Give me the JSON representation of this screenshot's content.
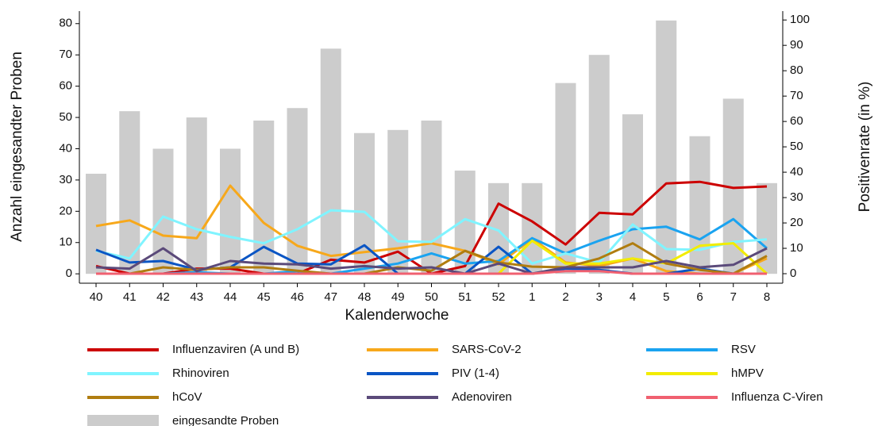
{
  "chart_data": {
    "type": "bar",
    "categories": [
      "40",
      "41",
      "42",
      "43",
      "44",
      "45",
      "46",
      "47",
      "48",
      "49",
      "50",
      "51",
      "52",
      "1",
      "2",
      "3",
      "4",
      "5",
      "6",
      "7",
      "8"
    ],
    "x_label": "Kalenderwoche",
    "y_label": "Anzahl eingesandter Proben",
    "y2_label": "Positivenrate (in %)",
    "ylim": [
      -3,
      84
    ],
    "yticks": [
      0,
      10,
      20,
      30,
      40,
      50,
      60,
      70,
      80
    ],
    "y2lim": [
      -3.75,
      103.5
    ],
    "y2ticks": [
      0,
      10,
      20,
      30,
      40,
      50,
      60,
      70,
      80,
      90,
      100
    ],
    "series": [
      {
        "name": "Influenzaviren (A und B)",
        "type": "line",
        "axis": "y2",
        "color": "#cc0000",
        "values": [
          3,
          0,
          0,
          2,
          2,
          0,
          0,
          5.5,
          4.4,
          8.7,
          0,
          3,
          27.6,
          20.6,
          11.5,
          24,
          23.4,
          35.6,
          36.2,
          33.8,
          34.4
        ]
      },
      {
        "name": "SARS-CoV-2",
        "type": "line",
        "axis": "y2",
        "color": "#f7a81b",
        "values": [
          18.8,
          21,
          15,
          14,
          34.7,
          20,
          11,
          7,
          8.5,
          10,
          12,
          9,
          3.7,
          13.8,
          4.4,
          3,
          6,
          1,
          0,
          0,
          6
        ]
      },
      {
        "name": "RSV",
        "type": "line",
        "axis": "y2",
        "color": "#1aa3f0",
        "values": [
          0,
          0,
          0,
          0.6,
          0,
          0,
          1,
          0,
          2,
          4,
          8,
          4,
          5,
          14,
          8,
          13,
          17.5,
          18.5,
          13.5,
          21.5,
          10
        ]
      },
      {
        "name": "Rhinoviren",
        "type": "line",
        "axis": "y2",
        "color": "#80f4ff",
        "values": [
          9,
          6,
          22.5,
          17.5,
          14.5,
          12,
          17.5,
          25,
          24.4,
          12.8,
          12.5,
          21.5,
          17,
          4,
          8,
          4.4,
          19.4,
          9.7,
          9.4,
          12.5,
          13.5
        ]
      },
      {
        "name": "PIV (1-4)",
        "type": "line",
        "axis": "y2",
        "color": "#0a55c4",
        "values": [
          9.4,
          4.4,
          5,
          1.6,
          2.5,
          10.6,
          4,
          3.7,
          11.2,
          0,
          0,
          0,
          10.6,
          0,
          2,
          1.5,
          0,
          0,
          2,
          0,
          0
        ]
      },
      {
        "name": "hMPV",
        "type": "line",
        "axis": "y2",
        "color": "#f2ec00",
        "values": [
          0,
          0,
          0,
          0,
          0,
          0,
          0,
          0,
          0,
          0,
          0,
          0,
          0,
          13,
          4,
          4,
          6,
          4,
          11,
          12,
          0
        ]
      },
      {
        "name": "hCoV",
        "type": "line",
        "axis": "y2",
        "color": "#b07d10",
        "values": [
          0,
          0,
          2.5,
          1.5,
          2.5,
          2.5,
          1.2,
          0,
          0,
          2.5,
          1.2,
          9,
          4.4,
          2.8,
          2.5,
          6,
          12,
          4,
          1.5,
          0,
          7
        ]
      },
      {
        "name": "Adenoviren",
        "type": "line",
        "axis": "y2",
        "color": "#5b4a7a",
        "values": [
          2.5,
          2,
          10,
          1,
          5,
          4,
          3.7,
          2,
          3,
          2,
          2.5,
          0,
          4,
          0,
          2.5,
          2.5,
          2.5,
          5,
          2.5,
          3.5,
          10
        ]
      },
      {
        "name": "Influenza C-Viren",
        "type": "line",
        "axis": "y2",
        "color": "#f06070",
        "values": [
          0,
          0,
          0,
          0,
          0,
          0,
          0,
          0,
          0,
          0,
          0,
          0,
          0,
          0,
          1,
          1,
          0,
          0,
          0,
          0,
          0
        ]
      },
      {
        "name": "eingesandte Proben",
        "type": "bar",
        "axis": "y",
        "color": "#cccccc",
        "values": [
          32,
          52,
          40,
          50,
          40,
          49,
          53,
          72,
          45,
          46,
          49,
          33,
          29,
          29,
          61,
          70,
          51,
          81,
          44,
          56,
          29
        ]
      }
    ]
  }
}
